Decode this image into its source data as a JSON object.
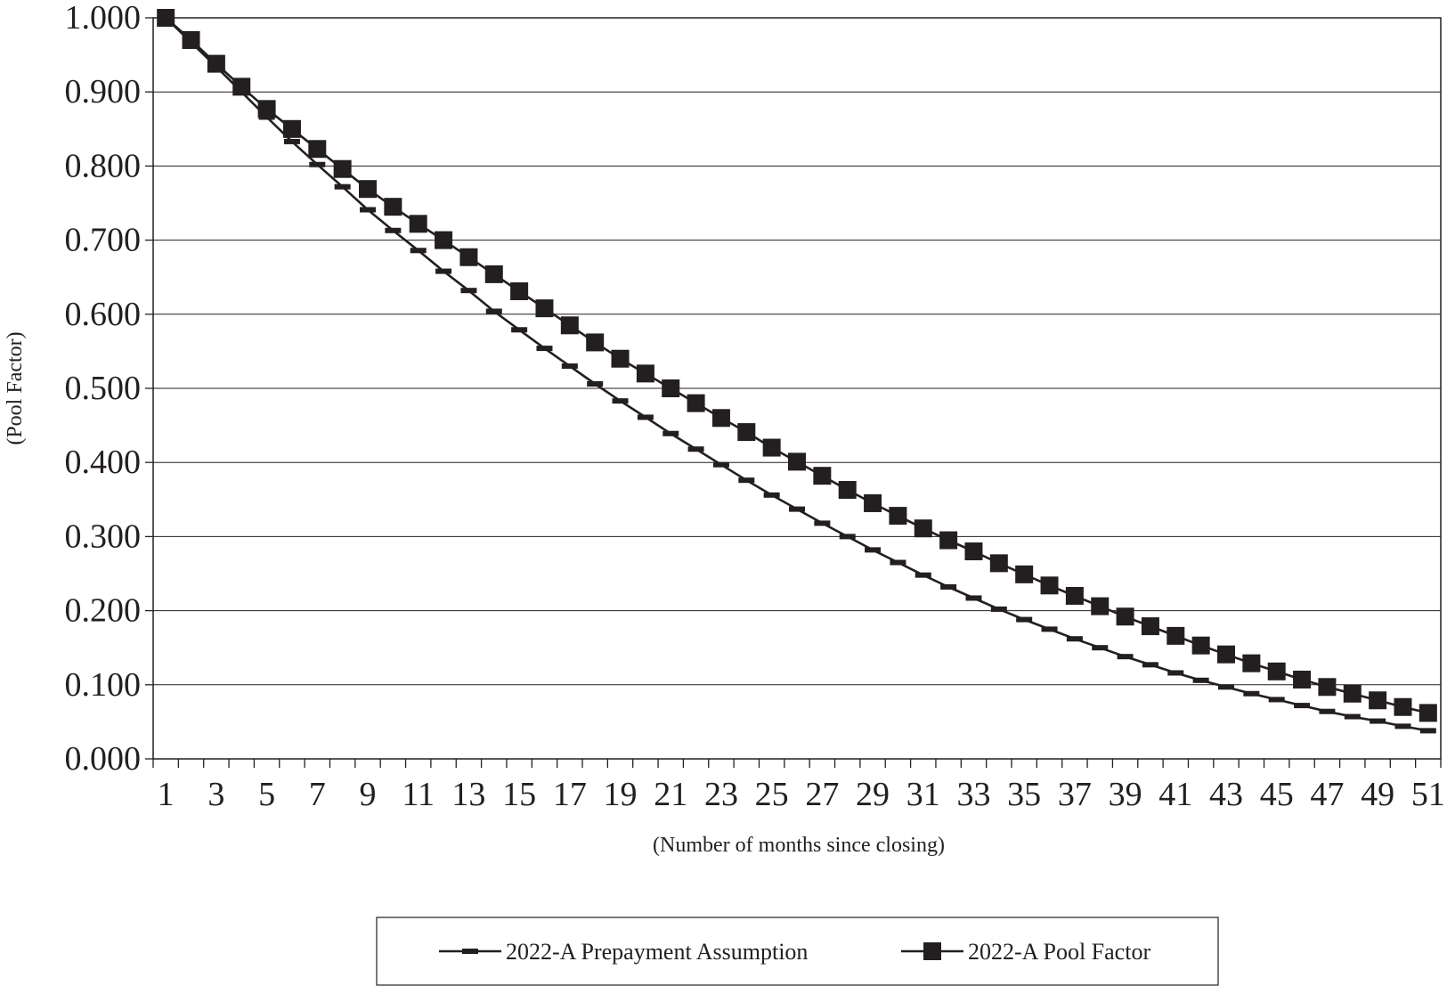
{
  "chart_data": {
    "type": "line",
    "title": "",
    "xlabel": "(Number of months since closing)",
    "ylabel": "(Pool Factor)",
    "ylim": [
      0,
      1
    ],
    "y_ticks": [
      "0.000",
      "0.100",
      "0.200",
      "0.300",
      "0.400",
      "0.500",
      "0.600",
      "0.700",
      "0.800",
      "0.900",
      "1.000"
    ],
    "x": [
      1,
      2,
      3,
      4,
      5,
      6,
      7,
      8,
      9,
      10,
      11,
      12,
      13,
      14,
      15,
      16,
      17,
      18,
      19,
      20,
      21,
      22,
      23,
      24,
      25,
      26,
      27,
      28,
      29,
      30,
      31,
      32,
      33,
      34,
      35,
      36,
      37,
      38,
      39,
      40,
      41,
      42,
      43,
      44,
      45,
      46,
      47,
      48,
      49,
      50,
      51
    ],
    "x_tick_labels": [
      "1",
      "3",
      "5",
      "7",
      "9",
      "11",
      "13",
      "15",
      "17",
      "19",
      "21",
      "23",
      "25",
      "27",
      "29",
      "31",
      "33",
      "35",
      "37",
      "39",
      "41",
      "43",
      "45",
      "47",
      "49",
      "51"
    ],
    "grid": "horizontal",
    "legend_position": "bottom",
    "series": [
      {
        "name": "2022-A Prepayment Assumption",
        "marker": "dash",
        "color": "#231f20",
        "values": [
          1.0,
          0.967,
          0.934,
          0.9,
          0.866,
          0.833,
          0.802,
          0.772,
          0.741,
          0.713,
          0.686,
          0.658,
          0.632,
          0.604,
          0.579,
          0.554,
          0.53,
          0.506,
          0.483,
          0.461,
          0.439,
          0.418,
          0.397,
          0.376,
          0.356,
          0.337,
          0.318,
          0.3,
          0.282,
          0.265,
          0.248,
          0.232,
          0.217,
          0.202,
          0.188,
          0.175,
          0.162,
          0.15,
          0.138,
          0.127,
          0.116,
          0.106,
          0.097,
          0.088,
          0.08,
          0.072,
          0.064,
          0.057,
          0.051,
          0.044,
          0.038
        ]
      },
      {
        "name": "2022-A Pool Factor",
        "marker": "square",
        "color": "#231f20",
        "values": [
          1.0,
          0.97,
          0.938,
          0.907,
          0.877,
          0.85,
          0.823,
          0.796,
          0.769,
          0.745,
          0.722,
          0.7,
          0.677,
          0.654,
          0.631,
          0.608,
          0.585,
          0.562,
          0.54,
          0.52,
          0.5,
          0.48,
          0.46,
          0.441,
          0.42,
          0.401,
          0.382,
          0.363,
          0.345,
          0.328,
          0.311,
          0.295,
          0.28,
          0.264,
          0.249,
          0.234,
          0.22,
          0.206,
          0.192,
          0.179,
          0.166,
          0.153,
          0.141,
          0.129,
          0.118,
          0.107,
          0.097,
          0.088,
          0.079,
          0.07,
          0.062
        ]
      }
    ]
  }
}
